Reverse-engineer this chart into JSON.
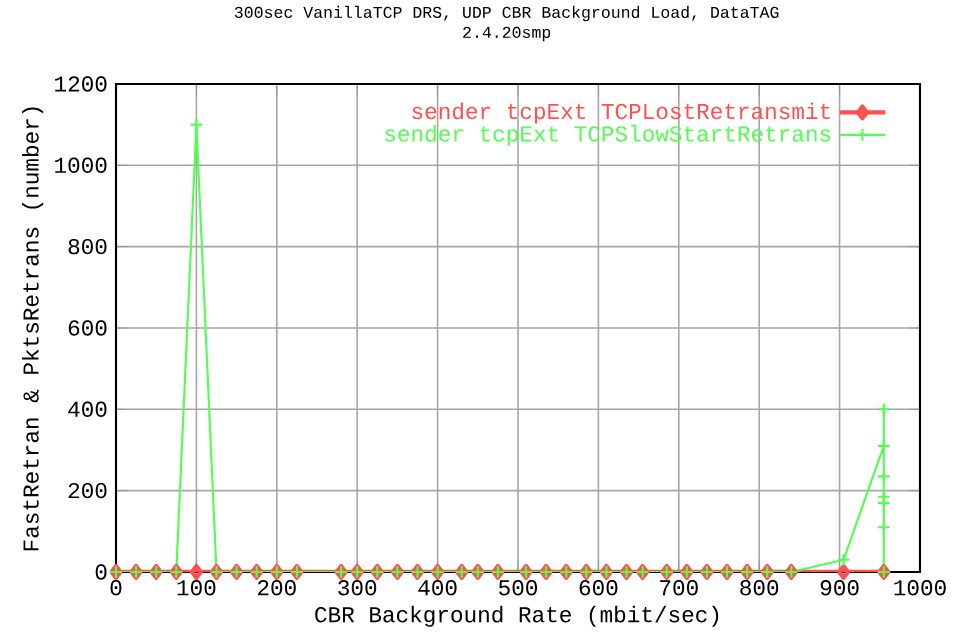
{
  "chart_data": {
    "type": "line",
    "title": "300sec VanillaTCP DRS, UDP CBR Background Load, DataTAG",
    "subtitle": "2.4.20smp",
    "xlabel": "CBR Background Rate (mbit/sec)",
    "ylabel": "FastRetran & PktsRetrans (number)",
    "xlim": [
      0,
      1000
    ],
    "xticks": [
      0,
      100,
      200,
      300,
      400,
      500,
      600,
      700,
      800,
      900,
      1000
    ],
    "ylim": [
      0,
      1200
    ],
    "yticks": [
      0,
      200,
      400,
      600,
      800,
      1000,
      1200
    ],
    "grid": true,
    "legend": "top right",
    "series": [
      {
        "name": "sender tcpExt TCPLostRetransmit",
        "color": "#ff5050",
        "marker": "diamond",
        "x": [
          0,
          25,
          50,
          75,
          100,
          125,
          150,
          175,
          200,
          225,
          280,
          300,
          325,
          350,
          375,
          400,
          430,
          450,
          475,
          510,
          535,
          560,
          585,
          610,
          635,
          655,
          685,
          710,
          735,
          760,
          785,
          810,
          840,
          905,
          955
        ],
        "values": [
          0,
          0,
          0,
          0,
          0,
          0,
          0,
          0,
          0,
          0,
          0,
          0,
          0,
          0,
          0,
          0,
          0,
          0,
          0,
          0,
          0,
          0,
          0,
          0,
          0,
          0,
          0,
          0,
          0,
          0,
          0,
          0,
          0,
          0,
          0
        ]
      },
      {
        "name": "sender tcpExt TCPSlowStartRetrans",
        "color": "#50ff50",
        "marker": "cross",
        "x": [
          0,
          25,
          50,
          75,
          100,
          125,
          150,
          175,
          200,
          225,
          280,
          300,
          325,
          350,
          375,
          400,
          430,
          450,
          475,
          510,
          535,
          560,
          585,
          610,
          635,
          655,
          685,
          710,
          735,
          760,
          785,
          810,
          840,
          905,
          955,
          955,
          955,
          955,
          955,
          955,
          955
        ],
        "values": [
          0,
          0,
          0,
          0,
          1100,
          0,
          0,
          0,
          0,
          0,
          0,
          0,
          0,
          0,
          0,
          0,
          0,
          0,
          0,
          0,
          0,
          0,
          0,
          0,
          0,
          0,
          0,
          0,
          0,
          0,
          0,
          0,
          0,
          30,
          310,
          400,
          235,
          185,
          170,
          110,
          0
        ]
      }
    ]
  }
}
